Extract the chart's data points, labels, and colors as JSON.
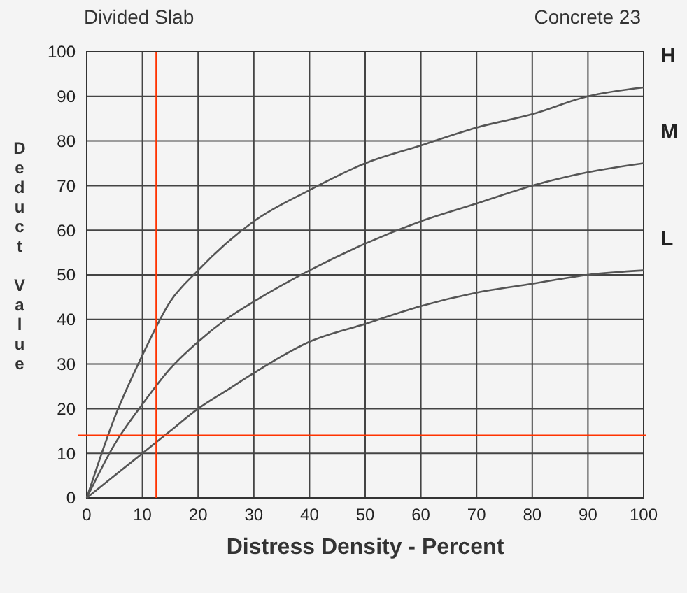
{
  "chart_data": {
    "type": "line",
    "title": "Divided Slab",
    "subtitle": "Concrete 23",
    "xlabel": "Distress Density - Percent",
    "ylabel": "Deduct Value",
    "x": [
      0,
      5,
      10,
      15,
      20,
      25,
      30,
      40,
      50,
      60,
      70,
      80,
      90,
      100
    ],
    "series": [
      {
        "name": "H",
        "color": "#555555",
        "values": [
          0,
          18,
          32,
          44,
          51,
          57,
          62,
          69,
          75,
          79,
          83,
          86,
          90,
          92
        ]
      },
      {
        "name": "M",
        "color": "#555555",
        "values": [
          0,
          12,
          21,
          29,
          35,
          40,
          44,
          51,
          57,
          62,
          66,
          70,
          73,
          75
        ]
      },
      {
        "name": "L",
        "color": "#555555",
        "values": [
          0,
          5,
          10,
          15,
          20,
          24,
          28,
          35,
          39,
          43,
          46,
          48,
          50,
          51
        ]
      }
    ],
    "xlim": [
      0,
      100
    ],
    "ylim": [
      0,
      100
    ],
    "xticks": [
      0,
      10,
      20,
      30,
      40,
      50,
      60,
      70,
      80,
      90,
      100
    ],
    "yticks": [
      0,
      10,
      20,
      30,
      40,
      50,
      60,
      70,
      80,
      90,
      100
    ],
    "grid": true,
    "marker": "none",
    "line_style": "solid",
    "ref_lines": [
      {
        "axis": "x",
        "value": 12.5,
        "color": "#ff3300"
      },
      {
        "axis": "y",
        "value": 14,
        "color": "#ff3300"
      }
    ]
  }
}
